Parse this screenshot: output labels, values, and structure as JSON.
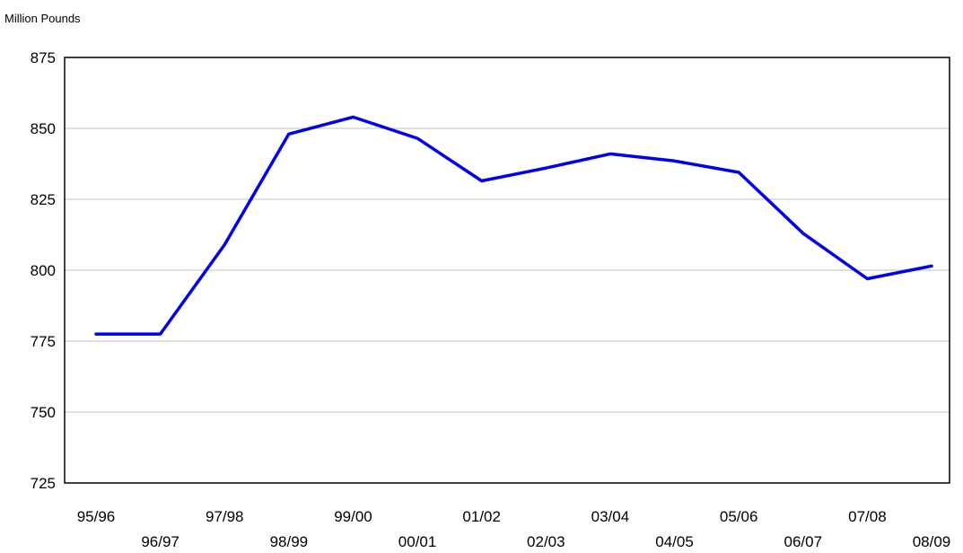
{
  "chart_data": {
    "type": "line",
    "ylabel": "Million Pounds",
    "xlabel": "",
    "categories": [
      "95/96",
      "96/97",
      "97/98",
      "98/99",
      "99/00",
      "00/01",
      "01/02",
      "02/03",
      "03/04",
      "04/05",
      "05/06",
      "06/07",
      "07/08",
      "08/09"
    ],
    "series": [
      {
        "values": [
          777.5,
          777.5,
          809,
          848,
          854,
          846.5,
          831.5,
          836,
          841,
          838.5,
          834.5,
          813,
          797,
          801.5
        ]
      }
    ],
    "ylim": [
      725,
      875
    ],
    "yticks": [
      725,
      750,
      775,
      800,
      825,
      850,
      875
    ],
    "ytick_labels": [
      "725",
      "750",
      "775",
      "800",
      "825",
      "850",
      "875"
    ],
    "grid": true,
    "legend": "none",
    "colors": {
      "line": "#0000ee",
      "grid": "#c0c0c0",
      "axis": "#000000"
    }
  }
}
